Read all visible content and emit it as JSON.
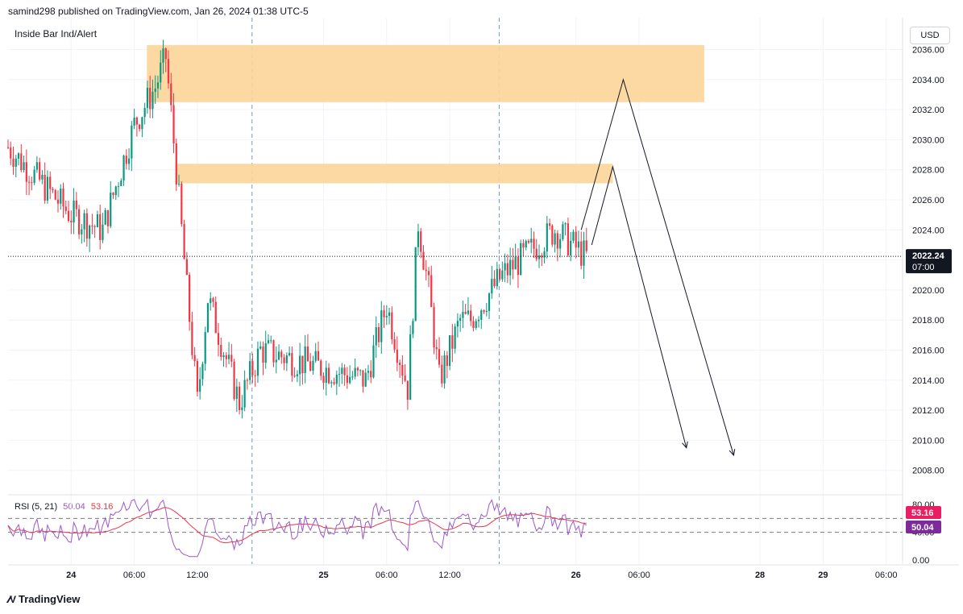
{
  "header": {
    "published_text": "samind298 published on TradingView.com, Jan 26, 2024 01:38 UTC-5"
  },
  "indicator_title": "Inside Bar Ind/Alert",
  "currency": "USD",
  "brand": "TradingView",
  "colors": {
    "up": "#089981",
    "down": "#f23645",
    "zone": "#fcd599",
    "rsi": "#9c59c9",
    "rsi_ma": "#f23645",
    "price_label_bg": "#131722",
    "rsi_label_bg": "#7e2a9a",
    "rsi_ma_label_bg": "#e91e63"
  },
  "chart_data": [
    {
      "type": "candlestick",
      "title": "",
      "price_axis": {
        "ticks": [
          "2008.00",
          "2010.00",
          "2012.00",
          "2014.00",
          "2016.00",
          "2018.00",
          "2020.00",
          "2022.00",
          "2024.00",
          "2026.00",
          "2028.00",
          "2030.00",
          "2032.00",
          "2034.00",
          "2036.00"
        ],
        "range": [
          2006.6,
          2036.4
        ]
      },
      "time_axis": {
        "labels": [
          "24",
          "06:00",
          "12:00",
          "25",
          "06:00",
          "12:00",
          "26",
          "06:00",
          "28",
          "29",
          "06:00"
        ]
      },
      "last_price": "2022.24",
      "countdown": "07:00",
      "zones": [
        {
          "from": 2032.5,
          "to": 2036.3
        },
        {
          "from": 2027.1,
          "to": 2028.4
        }
      ],
      "price_path_anchors": [
        {
          "t": "23 18:00",
          "close": 2029.5
        },
        {
          "t": "24 00:00",
          "close": 2025.0
        },
        {
          "t": "24 03:00",
          "close": 2024.0
        },
        {
          "t": "24 06:00",
          "close": 2031.0
        },
        {
          "t": "24 08:00",
          "close": 2033.5
        },
        {
          "t": "24 09:00",
          "close": 2035.5
        },
        {
          "t": "24 10:00",
          "close": 2028.0
        },
        {
          "t": "24 11:00",
          "close": 2020.0
        },
        {
          "t": "24 12:00",
          "close": 2012.5
        },
        {
          "t": "24 13:00",
          "close": 2019.5
        },
        {
          "t": "24 16:00",
          "close": 2012.5
        },
        {
          "t": "24 18:00",
          "close": 2016.0
        },
        {
          "t": "25 04:00",
          "close": 2014.0
        },
        {
          "t": "25 06:00",
          "close": 2019.0
        },
        {
          "t": "25 08:00",
          "close": 2013.5
        },
        {
          "t": "25 09:00",
          "close": 2024.5
        },
        {
          "t": "25 10:00",
          "close": 2020.0
        },
        {
          "t": "25 11:00",
          "close": 2014.0
        },
        {
          "t": "25 13:00",
          "close": 2018.0
        },
        {
          "t": "25 14:00",
          "close": 2018.0
        },
        {
          "t": "25 17:00",
          "close": 2021.0
        },
        {
          "t": "25 22:00",
          "close": 2024.0
        },
        {
          "t": "26 01:00",
          "close": 2022.2
        }
      ],
      "projection_arrows": [
        {
          "points": [
            {
              "t": "26 00:30",
              "y": 2024.0
            },
            {
              "t": "26 04:30",
              "y": 2034.0
            },
            {
              "t": "26 15:00",
              "y": 2009.0
            }
          ]
        },
        {
          "points": [
            {
              "t": "26 01:30",
              "y": 2023.0
            },
            {
              "t": "26 03:30",
              "y": 2028.2
            },
            {
              "t": "26 10:30",
              "y": 2009.5
            }
          ]
        }
      ]
    },
    {
      "type": "line",
      "title": "",
      "legend": {
        "name": "RSI (5, 21)",
        "values": [
          "50.04",
          "53.16"
        ]
      },
      "ticks": [
        "80.00",
        "40.00",
        "0.00"
      ],
      "range": [
        0,
        80
      ],
      "bands": [
        60,
        40
      ],
      "labels": {
        "rsi": "50.04",
        "rsi_ma": "53.16"
      },
      "series": [
        {
          "color": "#9c59c9",
          "last": 50.04
        },
        {
          "color": "#f23645",
          "last": 53.16
        }
      ]
    }
  ]
}
